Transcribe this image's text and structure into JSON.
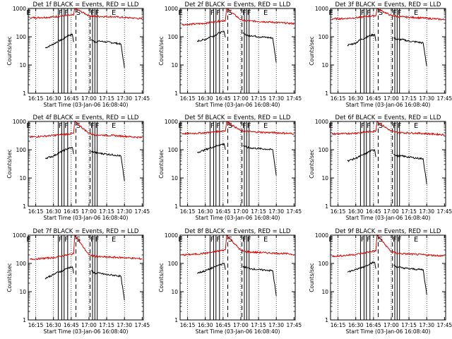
{
  "figure": {
    "background": "#ffffff",
    "events_color": "#000000",
    "lld_color": "#dd0000",
    "x_tick_labels": [
      "16:15",
      "16:30",
      "16:45",
      "17:00",
      "17:15",
      "17:30",
      "17:45"
    ],
    "y_tick_labels": [
      "1",
      "10",
      "100",
      "1000"
    ],
    "xlabel": "Start Time (03-Jan-06 16:08:40)",
    "ylabel": "Counts/sec"
  },
  "chart_data": [
    {
      "type": "line",
      "title": "Det 1f BLACK = Events, RED = LLD",
      "xlabel": "Start Time (03-Jan-06 16:08:40)",
      "ylabel": "Counts/sec",
      "y_scale": "log",
      "xlim": [
        "16:08:40",
        "17:46"
      ],
      "ylim": [
        1,
        1000
      ],
      "markers": [
        {
          "label": "E",
          "time": "16:09"
        },
        {
          "label": "F",
          "time": "16:36"
        },
        {
          "label": "F",
          "time": "16:41"
        },
        {
          "label": "S",
          "time": "16:51"
        },
        {
          "label": "F",
          "time": "17:03"
        },
        {
          "label": "F",
          "time": "17:07"
        },
        {
          "label": "E",
          "time": "17:21"
        }
      ],
      "series": [
        {
          "name": "Events",
          "x": [
            "16:23",
            "16:30",
            "16:34",
            "16:38",
            "16:42",
            "16:46",
            "16:47",
            "17:02",
            "17:05",
            "17:09",
            "17:15",
            "17:22",
            "17:27",
            "17:30"
          ],
          "y": [
            40,
            55,
            70,
            80,
            110,
            120,
            65,
            80,
            65,
            70,
            65,
            60,
            55,
            8
          ]
        },
        {
          "name": "LLD",
          "x": [
            "16:10",
            "16:20",
            "16:30",
            "16:36",
            "16:42",
            "16:47",
            "16:48",
            "17:00",
            "17:05",
            "17:10",
            "17:20",
            "17:30",
            "17:40",
            "17:45"
          ],
          "y": [
            470,
            480,
            500,
            540,
            560,
            580,
            1000,
            560,
            520,
            520,
            510,
            480,
            450,
            430
          ]
        }
      ]
    },
    {
      "type": "line",
      "title": "Det 2f BLACK = Events, RED = LLD",
      "xlabel": "Start Time (03-Jan-06 16:08:40)",
      "ylabel": "Counts/sec",
      "y_scale": "log",
      "xlim": [
        "16:08:40",
        "17:46"
      ],
      "ylim": [
        1,
        1000
      ],
      "markers": [
        {
          "label": "E",
          "time": "16:09"
        },
        {
          "label": "F",
          "time": "16:36"
        },
        {
          "label": "F",
          "time": "16:41"
        },
        {
          "label": "S",
          "time": "16:51"
        },
        {
          "label": "F",
          "time": "17:03"
        },
        {
          "label": "F",
          "time": "17:07"
        },
        {
          "label": "E",
          "time": "17:21"
        }
      ],
      "series": [
        {
          "name": "Events",
          "x": [
            "16:23",
            "16:30",
            "16:34",
            "16:38",
            "16:42",
            "16:46",
            "16:47",
            "17:02",
            "17:05",
            "17:09",
            "17:15",
            "17:22",
            "17:27",
            "17:30"
          ],
          "y": [
            70,
            80,
            100,
            110,
            140,
            150,
            95,
            140,
            110,
            110,
            100,
            95,
            90,
            12
          ]
        },
        {
          "name": "LLD",
          "x": [
            "16:10",
            "16:20",
            "16:30",
            "16:36",
            "16:42",
            "16:47",
            "16:48",
            "17:00",
            "17:05",
            "17:10",
            "17:20",
            "17:30",
            "17:40",
            "17:45"
          ],
          "y": [
            270,
            280,
            300,
            330,
            360,
            380,
            1000,
            400,
            360,
            360,
            340,
            320,
            300,
            290
          ]
        }
      ]
    },
    {
      "type": "line",
      "title": "Det 3f BLACK = Events, RED = LLD",
      "xlabel": "Start Time (03-Jan-06 16:08:40)",
      "ylabel": "Counts/sec",
      "y_scale": "log",
      "xlim": [
        "16:08:40",
        "17:46"
      ],
      "ylim": [
        1,
        1000
      ],
      "markers": [
        {
          "label": "E",
          "time": "16:09"
        },
        {
          "label": "F",
          "time": "16:36"
        },
        {
          "label": "F",
          "time": "16:41"
        },
        {
          "label": "S",
          "time": "16:51"
        },
        {
          "label": "F",
          "time": "17:03"
        },
        {
          "label": "F",
          "time": "17:07"
        },
        {
          "label": "E",
          "time": "17:21"
        }
      ],
      "series": [
        {
          "name": "Events",
          "x": [
            "16:23",
            "16:30",
            "16:34",
            "16:38",
            "16:42",
            "16:46",
            "16:47",
            "17:02",
            "17:05",
            "17:09",
            "17:15",
            "17:22",
            "17:27",
            "17:30"
          ],
          "y": [
            50,
            60,
            80,
            90,
            110,
            120,
            70,
            90,
            80,
            80,
            70,
            65,
            60,
            9
          ]
        },
        {
          "name": "LLD",
          "x": [
            "16:10",
            "16:20",
            "16:30",
            "16:36",
            "16:42",
            "16:47",
            "16:48",
            "17:00",
            "17:05",
            "17:10",
            "17:20",
            "17:30",
            "17:40",
            "17:45"
          ],
          "y": [
            430,
            440,
            470,
            500,
            540,
            560,
            1000,
            560,
            520,
            500,
            480,
            450,
            420,
            400
          ]
        }
      ]
    },
    {
      "type": "line",
      "title": "Det 4f BLACK = Events, RED = LLD",
      "xlabel": "Start Time (03-Jan-06 16:08:40)",
      "ylabel": "Counts/sec",
      "y_scale": "log",
      "xlim": [
        "16:08:40",
        "17:46"
      ],
      "ylim": [
        1,
        1000
      ],
      "markers": [
        {
          "label": "E",
          "time": "16:09"
        },
        {
          "label": "F",
          "time": "16:36"
        },
        {
          "label": "F",
          "time": "16:41"
        },
        {
          "label": "S",
          "time": "16:51"
        },
        {
          "label": "F",
          "time": "17:03"
        },
        {
          "label": "F",
          "time": "17:07"
        },
        {
          "label": "E",
          "time": "17:21"
        }
      ],
      "series": [
        {
          "name": "Events",
          "x": [
            "16:23",
            "16:30",
            "16:34",
            "16:38",
            "16:42",
            "16:46",
            "16:47",
            "17:02",
            "17:05",
            "17:09",
            "17:15",
            "17:22",
            "17:27",
            "17:30"
          ],
          "y": [
            50,
            60,
            75,
            90,
            110,
            120,
            70,
            90,
            80,
            75,
            70,
            65,
            60,
            8
          ]
        },
        {
          "name": "LLD",
          "x": [
            "16:10",
            "16:20",
            "16:30",
            "16:36",
            "16:42",
            "16:47",
            "16:48",
            "17:00",
            "17:05",
            "17:10",
            "17:20",
            "17:30",
            "17:40",
            "17:45"
          ],
          "y": [
            280,
            300,
            320,
            340,
            360,
            380,
            1000,
            380,
            340,
            330,
            320,
            300,
            280,
            270
          ]
        }
      ]
    },
    {
      "type": "line",
      "title": "Det 5f BLACK = Events, RED = LLD",
      "xlabel": "Start Time (03-Jan-06 16:08:40)",
      "ylabel": "Counts/sec",
      "y_scale": "log",
      "xlim": [
        "16:08:40",
        "17:46"
      ],
      "ylim": [
        1,
        1000
      ],
      "markers": [
        {
          "label": "E",
          "time": "16:09"
        },
        {
          "label": "F",
          "time": "16:36"
        },
        {
          "label": "F",
          "time": "16:41"
        },
        {
          "label": "S",
          "time": "16:51"
        },
        {
          "label": "F",
          "time": "17:03"
        },
        {
          "label": "F",
          "time": "17:07"
        },
        {
          "label": "E",
          "time": "17:21"
        }
      ],
      "series": [
        {
          "name": "Events",
          "x": [
            "16:23",
            "16:30",
            "16:34",
            "16:38",
            "16:42",
            "16:46",
            "16:47",
            "17:02",
            "17:05",
            "17:09",
            "17:15",
            "17:22",
            "17:27",
            "17:30"
          ],
          "y": [
            80,
            100,
            115,
            130,
            150,
            160,
            100,
            140,
            120,
            115,
            110,
            105,
            100,
            12
          ]
        },
        {
          "name": "LLD",
          "x": [
            "16:10",
            "16:20",
            "16:30",
            "16:36",
            "16:42",
            "16:47",
            "16:48",
            "17:00",
            "17:05",
            "17:10",
            "17:20",
            "17:30",
            "17:40",
            "17:45"
          ],
          "y": [
            370,
            380,
            400,
            420,
            450,
            470,
            1000,
            470,
            440,
            430,
            410,
            400,
            380,
            370
          ]
        }
      ]
    },
    {
      "type": "line",
      "title": "Det 6f BLACK = Events, RED = LLD",
      "xlabel": "Start Time (03-Jan-06 16:08:40)",
      "ylabel": "Counts/sec",
      "y_scale": "log",
      "xlim": [
        "16:08:40",
        "17:46"
      ],
      "ylim": [
        1,
        1000
      ],
      "markers": [
        {
          "label": "E",
          "time": "16:09"
        },
        {
          "label": "F",
          "time": "16:36"
        },
        {
          "label": "F",
          "time": "16:41"
        },
        {
          "label": "S",
          "time": "16:51"
        },
        {
          "label": "F",
          "time": "17:03"
        },
        {
          "label": "F",
          "time": "17:07"
        },
        {
          "label": "E",
          "time": "17:21"
        }
      ],
      "series": [
        {
          "name": "Events",
          "x": [
            "16:23",
            "16:30",
            "16:34",
            "16:38",
            "16:42",
            "16:46",
            "16:47",
            "17:02",
            "17:05",
            "17:09",
            "17:15",
            "17:22",
            "17:27",
            "17:30"
          ],
          "y": [
            40,
            50,
            60,
            70,
            90,
            100,
            55,
            70,
            60,
            60,
            55,
            50,
            48,
            6
          ]
        },
        {
          "name": "LLD",
          "x": [
            "16:10",
            "16:20",
            "16:30",
            "16:36",
            "16:42",
            "16:47",
            "16:48",
            "17:00",
            "17:05",
            "17:10",
            "17:20",
            "17:30",
            "17:40",
            "17:45"
          ],
          "y": [
            360,
            370,
            390,
            410,
            440,
            460,
            1000,
            450,
            410,
            400,
            390,
            370,
            350,
            340
          ]
        }
      ]
    },
    {
      "type": "line",
      "title": "Det 7f BLACK = Events, RED = LLD",
      "xlabel": "Start Time (03-Jan-06 16:08:40)",
      "ylabel": "Counts/sec",
      "y_scale": "log",
      "xlim": [
        "16:08:40",
        "17:46"
      ],
      "ylim": [
        1,
        1000
      ],
      "markers": [
        {
          "label": "E",
          "time": "16:09"
        },
        {
          "label": "F",
          "time": "16:36"
        },
        {
          "label": "F",
          "time": "16:41"
        },
        {
          "label": "S",
          "time": "16:51"
        },
        {
          "label": "F",
          "time": "17:03"
        },
        {
          "label": "F",
          "time": "17:07"
        },
        {
          "label": "E",
          "time": "17:21"
        }
      ],
      "series": [
        {
          "name": "Events",
          "x": [
            "16:23",
            "16:30",
            "16:34",
            "16:38",
            "16:42",
            "16:46",
            "16:47",
            "17:02",
            "17:05",
            "17:09",
            "17:15",
            "17:22",
            "17:27",
            "17:30"
          ],
          "y": [
            30,
            40,
            50,
            55,
            70,
            75,
            45,
            55,
            45,
            45,
            40,
            38,
            35,
            5
          ]
        },
        {
          "name": "LLD",
          "x": [
            "16:10",
            "16:20",
            "16:30",
            "16:36",
            "16:42",
            "16:47",
            "16:48",
            "17:00",
            "17:05",
            "17:10",
            "17:20",
            "17:30",
            "17:40",
            "17:45"
          ],
          "y": [
            140,
            150,
            160,
            180,
            200,
            220,
            1000,
            200,
            180,
            170,
            165,
            160,
            150,
            145
          ]
        }
      ]
    },
    {
      "type": "line",
      "title": "Det 8f BLACK = Events, RED = LLD",
      "xlabel": "Start Time (03-Jan-06 16:08:40)",
      "ylabel": "Counts/sec",
      "y_scale": "log",
      "xlim": [
        "16:08:40",
        "17:46"
      ],
      "ylim": [
        1,
        1000
      ],
      "markers": [
        {
          "label": "E",
          "time": "16:09"
        },
        {
          "label": "F",
          "time": "16:36"
        },
        {
          "label": "F",
          "time": "16:41"
        },
        {
          "label": "S",
          "time": "16:51"
        },
        {
          "label": "F",
          "time": "17:03"
        },
        {
          "label": "F",
          "time": "17:07"
        },
        {
          "label": "E",
          "time": "17:21"
        }
      ],
      "series": [
        {
          "name": "Events",
          "x": [
            "16:23",
            "16:30",
            "16:34",
            "16:38",
            "16:42",
            "16:46",
            "16:47",
            "17:02",
            "17:05",
            "17:09",
            "17:15",
            "17:22",
            "17:27",
            "17:30"
          ],
          "y": [
            45,
            55,
            65,
            75,
            90,
            100,
            60,
            80,
            70,
            65,
            60,
            58,
            55,
            7
          ]
        },
        {
          "name": "LLD",
          "x": [
            "16:10",
            "16:20",
            "16:30",
            "16:36",
            "16:42",
            "16:47",
            "16:48",
            "17:00",
            "17:05",
            "17:10",
            "17:20",
            "17:30",
            "17:40",
            "17:45"
          ],
          "y": [
            200,
            210,
            230,
            250,
            280,
            300,
            1000,
            290,
            260,
            250,
            240,
            230,
            220,
            210
          ]
        }
      ]
    },
    {
      "type": "line",
      "title": "Det 9f BLACK = Events, RED = LLD",
      "xlabel": "Start Time (03-Jan-06 16:08:40)",
      "ylabel": "Counts/sec",
      "y_scale": "log",
      "xlim": [
        "16:08:40",
        "17:46"
      ],
      "ylim": [
        1,
        1000
      ],
      "markers": [
        {
          "label": "E",
          "time": "16:09"
        },
        {
          "label": "F",
          "time": "16:36"
        },
        {
          "label": "F",
          "time": "16:41"
        },
        {
          "label": "S",
          "time": "16:51"
        },
        {
          "label": "F",
          "time": "17:03"
        },
        {
          "label": "F",
          "time": "17:07"
        },
        {
          "label": "E",
          "time": "17:21"
        }
      ],
      "series": [
        {
          "name": "Events",
          "x": [
            "16:23",
            "16:30",
            "16:34",
            "16:38",
            "16:42",
            "16:46",
            "16:47",
            "17:02",
            "17:05",
            "17:09",
            "17:15",
            "17:22",
            "17:27",
            "17:30"
          ],
          "y": [
            50,
            60,
            70,
            80,
            100,
            110,
            65,
            85,
            75,
            70,
            65,
            62,
            60,
            8
          ]
        },
        {
          "name": "LLD",
          "x": [
            "16:10",
            "16:20",
            "16:30",
            "16:36",
            "16:42",
            "16:47",
            "16:48",
            "17:00",
            "17:05",
            "17:10",
            "17:20",
            "17:30",
            "17:40",
            "17:45"
          ],
          "y": [
            180,
            190,
            210,
            230,
            260,
            280,
            1000,
            260,
            230,
            220,
            210,
            200,
            190,
            185
          ]
        }
      ]
    }
  ]
}
